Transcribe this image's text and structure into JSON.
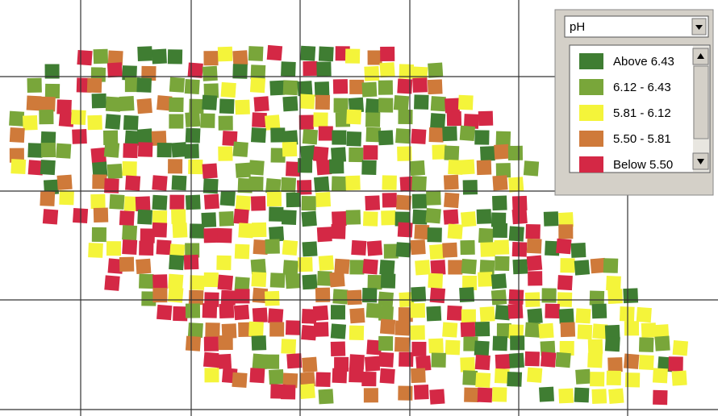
{
  "dropdown": {
    "selected": "pH"
  },
  "legend": {
    "items": [
      {
        "label": "Above 6.43",
        "color": "#3f7d32"
      },
      {
        "label": "6.12 - 6.43",
        "color": "#79a63a"
      },
      {
        "label": "5.81 - 6.12",
        "color": "#f4f43a"
      },
      {
        "label": "5.50 - 5.81",
        "color": "#cf7a3a"
      },
      {
        "label": "Below 5.50",
        "color": "#d42845"
      }
    ]
  }
}
